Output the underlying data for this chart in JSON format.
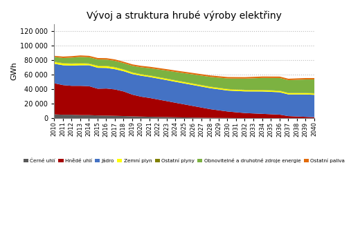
{
  "title": "Vývoj a struktura hrubé výroby elektřiny",
  "ylabel": "GWh",
  "years": [
    2010,
    2011,
    2012,
    2013,
    2014,
    2015,
    2016,
    2017,
    2018,
    2019,
    2020,
    2021,
    2022,
    2023,
    2024,
    2025,
    2026,
    2027,
    2028,
    2029,
    2030,
    2031,
    2032,
    2033,
    2034,
    2035,
    2036,
    2037,
    2038,
    2039,
    2040
  ],
  "cerne_uhli": [
    5500,
    5000,
    5000,
    4500,
    4500,
    4000,
    3800,
    3500,
    3200,
    2800,
    2500,
    2200,
    2000,
    1800,
    1500,
    1300,
    1100,
    900,
    700,
    600,
    500,
    400,
    350,
    300,
    250,
    200,
    150,
    150,
    150,
    100,
    100
  ],
  "hnede_uhli": [
    43000,
    41000,
    40000,
    40500,
    40000,
    37000,
    37500,
    36500,
    34000,
    30000,
    27500,
    26000,
    24000,
    22000,
    20000,
    18000,
    16000,
    14000,
    12000,
    10500,
    9000,
    8000,
    7000,
    6500,
    6000,
    5500,
    5000,
    3000,
    2500,
    2000,
    1500
  ],
  "jadro": [
    27000,
    27500,
    28000,
    28500,
    29000,
    29000,
    28500,
    28000,
    28000,
    28500,
    29000,
    29000,
    29000,
    29000,
    29000,
    29000,
    29000,
    29000,
    29000,
    29000,
    29000,
    29500,
    30000,
    30500,
    31000,
    31000,
    31000,
    30000,
    30500,
    31000,
    31000
  ],
  "zemni_plyn": [
    2500,
    2500,
    2500,
    2500,
    2000,
    2500,
    2500,
    2500,
    2200,
    2000,
    1800,
    1800,
    1800,
    1800,
    1800,
    1800,
    1800,
    1800,
    1800,
    1800,
    1800,
    1800,
    1800,
    1800,
    1800,
    1800,
    1800,
    1800,
    1800,
    1800,
    1800
  ],
  "ostatni_plyny": [
    500,
    500,
    600,
    600,
    500,
    500,
    500,
    500,
    400,
    400,
    400,
    400,
    400,
    400,
    400,
    400,
    400,
    400,
    400,
    400,
    400,
    400,
    400,
    400,
    400,
    400,
    400,
    400,
    400,
    400,
    400
  ],
  "obnovitelne": [
    6500,
    7000,
    8000,
    8500,
    8500,
    8500,
    8500,
    8500,
    8500,
    9000,
    9500,
    10000,
    10500,
    11000,
    11500,
    12000,
    12500,
    13000,
    13500,
    14000,
    14500,
    15000,
    15500,
    16000,
    16500,
    17000,
    17500,
    17500,
    18000,
    18500,
    19000
  ],
  "ostatni_paliva": [
    1500,
    2000,
    2000,
    2000,
    2000,
    2000,
    2000,
    2000,
    2000,
    2000,
    2000,
    2000,
    2000,
    2000,
    2000,
    2000,
    2000,
    2000,
    2000,
    2000,
    2000,
    2000,
    2000,
    2000,
    2000,
    2000,
    2000,
    2000,
    2000,
    2000,
    2000
  ],
  "colors": [
    "#595959",
    "#A50000",
    "#4472C4",
    "#FFFF00",
    "#808000",
    "#7CB241",
    "#E26B0A"
  ],
  "labels": [
    "Černé uhlí",
    "Hnědé uhlí",
    "Jádro",
    "Zemní plyn",
    "Ostatní plyny",
    "Obnovitelné a druhotné zdroje energie",
    "Ostatní paliva"
  ],
  "ylim": [
    0,
    130000
  ],
  "yticks": [
    0,
    20000,
    40000,
    60000,
    80000,
    100000,
    120000
  ],
  "background_color": "#FFFFFF",
  "grid_color": "#BBBBBB"
}
